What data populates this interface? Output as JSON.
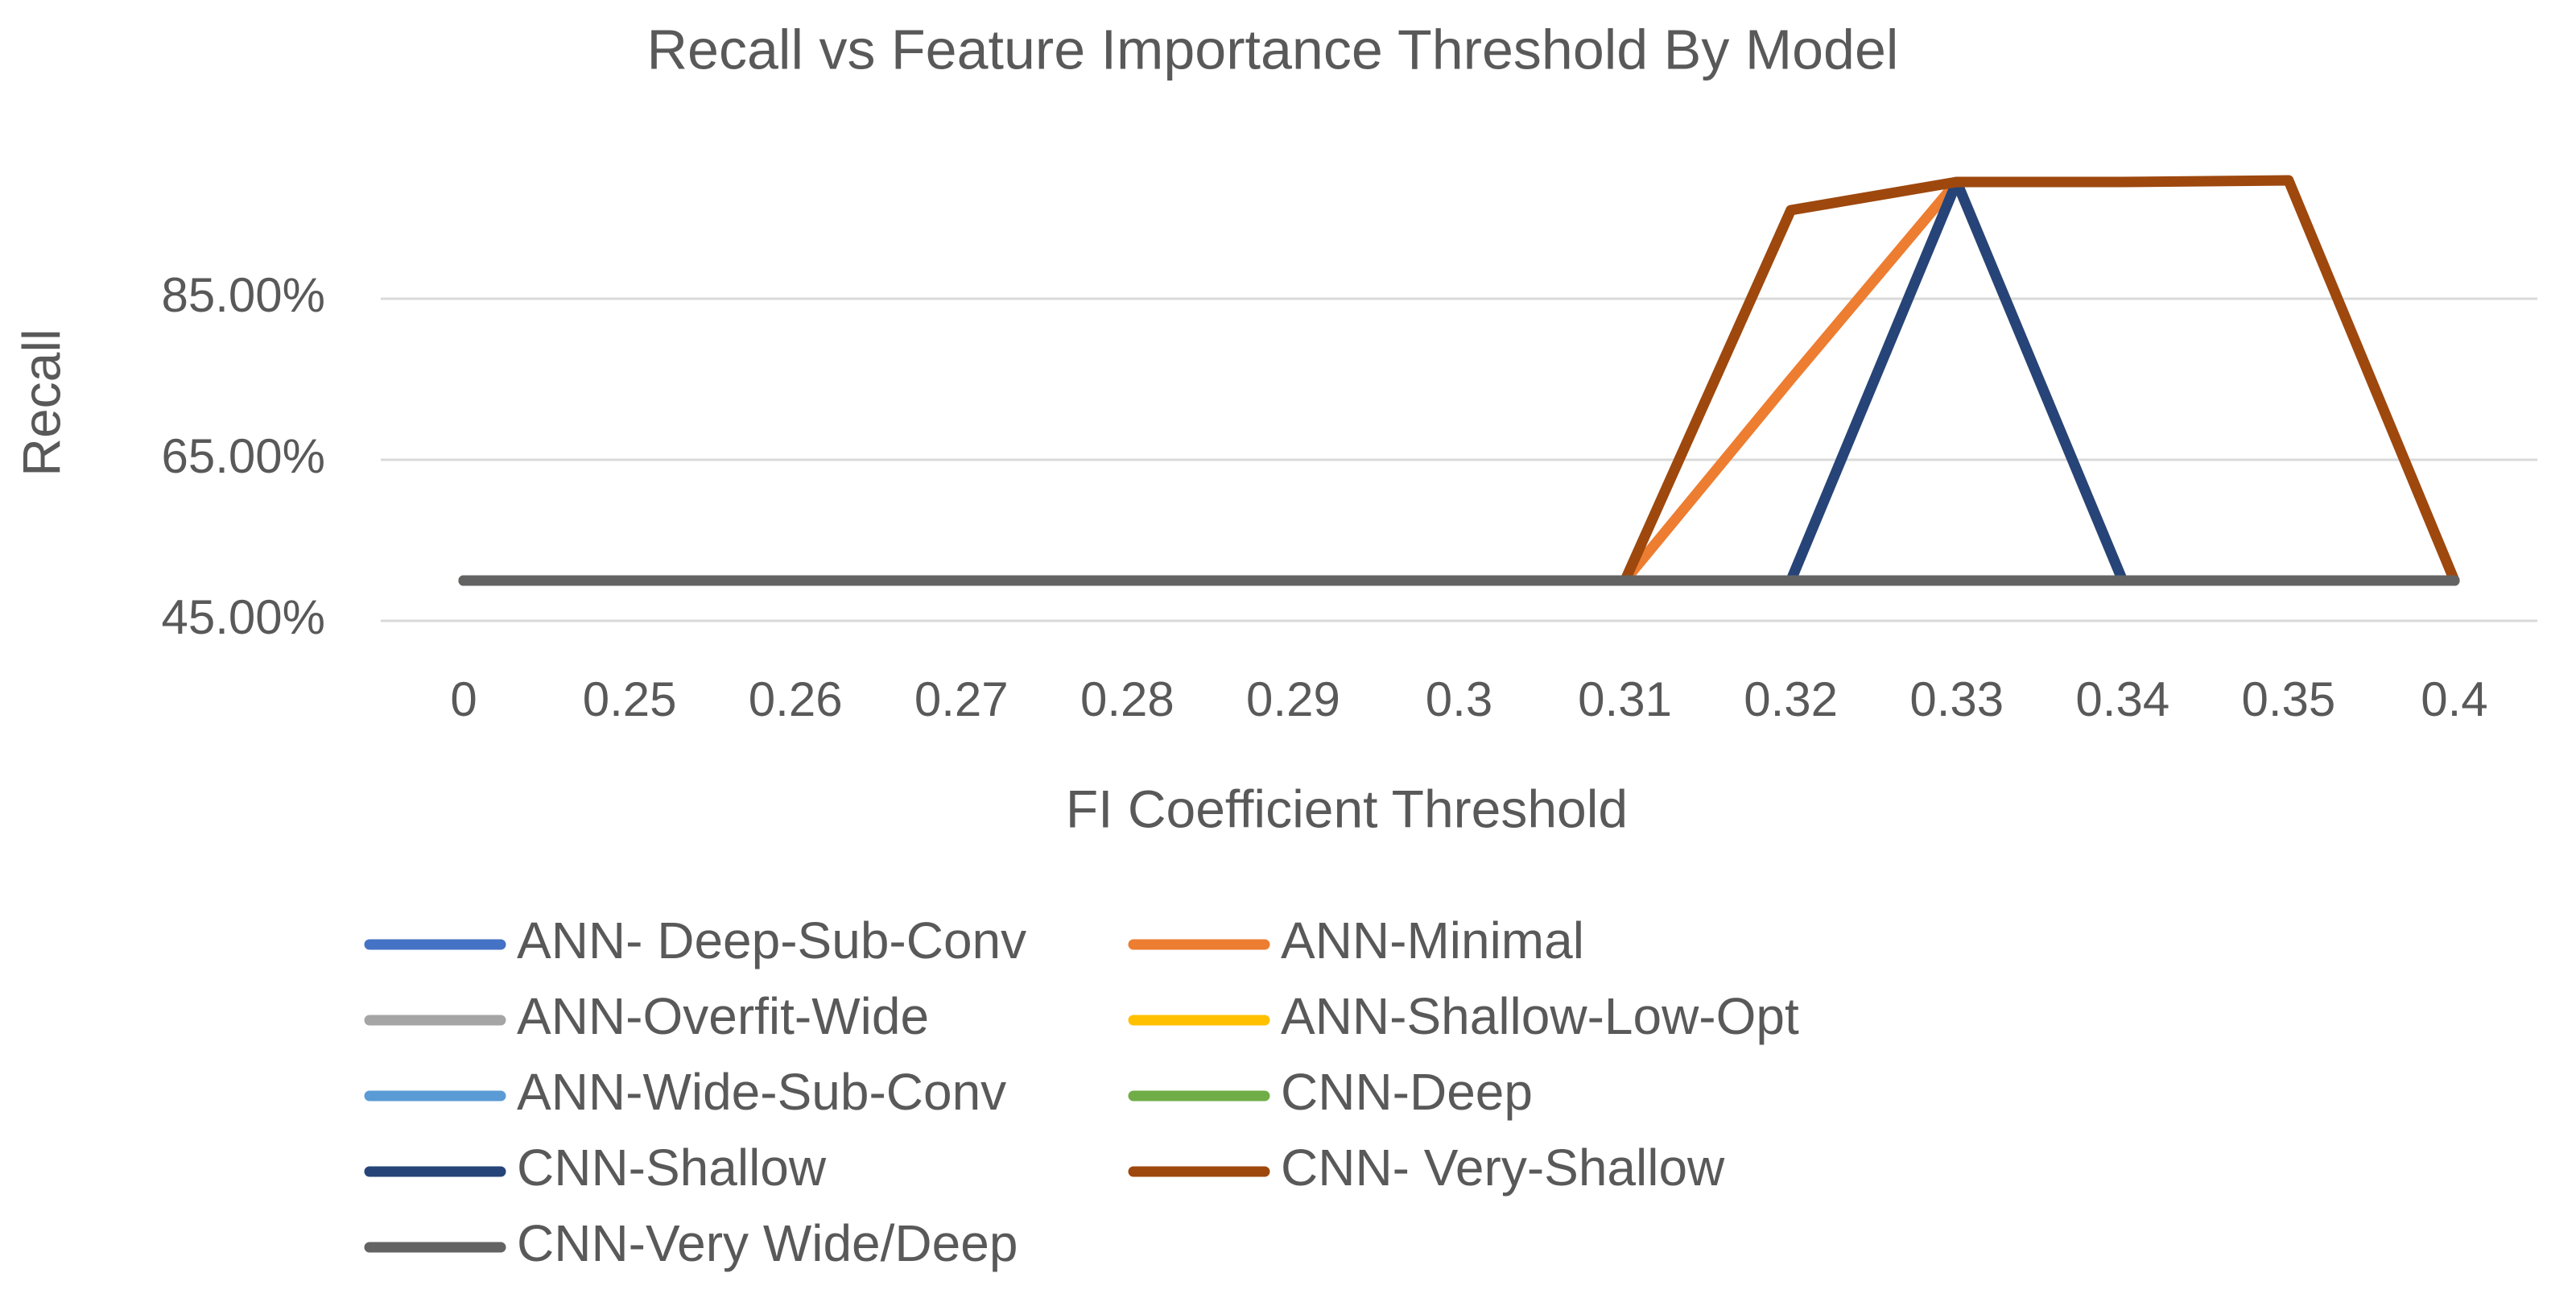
{
  "chart_data": {
    "type": "line",
    "title": "Recall vs Feature Importance Threshold By Model",
    "x_label": "FI Coefficient Threshold",
    "y_label": "Recall",
    "categories": [
      "0",
      "0.25",
      "0.26",
      "0.27",
      "0.28",
      "0.29",
      "0.3",
      "0.31",
      "0.32",
      "0.33",
      "0.34",
      "0.35",
      "0.4"
    ],
    "ylim": [
      45,
      100
    ],
    "yticks": [
      {
        "value": 45,
        "label": "45.00%"
      },
      {
        "value": 65,
        "label": "65.00%"
      },
      {
        "value": 85,
        "label": "85.00%"
      }
    ],
    "grid": true,
    "series": [
      {
        "name": "ANN- Deep-Sub-Conv",
        "color": "#4472c4",
        "values": [
          50,
          50,
          50,
          50,
          50,
          50,
          50,
          50,
          50,
          50,
          50,
          50,
          50
        ]
      },
      {
        "name": "ANN-Minimal",
        "color": "#ed7d31",
        "values": [
          50,
          50,
          50,
          50,
          50,
          50,
          50,
          50,
          75,
          99.5,
          50,
          50,
          50
        ]
      },
      {
        "name": "ANN-Overfit-Wide",
        "color": "#a5a5a5",
        "values": [
          50,
          50,
          50,
          50,
          50,
          50,
          50,
          50,
          50,
          99.5,
          50,
          50,
          50
        ]
      },
      {
        "name": "ANN-Shallow-Low-Opt",
        "color": "#ffc000",
        "values": [
          50,
          50,
          50,
          50,
          50,
          50,
          50,
          50,
          50,
          50,
          50,
          50,
          50
        ]
      },
      {
        "name": "ANN-Wide-Sub-Conv",
        "color": "#5b9bd5",
        "values": [
          50,
          50,
          50,
          50,
          50,
          50,
          50,
          50,
          50,
          50,
          50,
          50,
          50
        ]
      },
      {
        "name": "CNN-Deep",
        "color": "#70ad47",
        "values": [
          50,
          50,
          50,
          50,
          50,
          50,
          50,
          50,
          50,
          50,
          50,
          50,
          50
        ]
      },
      {
        "name": "CNN-Shallow",
        "color": "#264478",
        "values": [
          50,
          50,
          50,
          50,
          50,
          50,
          50,
          50,
          50,
          99.5,
          50,
          50,
          50
        ]
      },
      {
        "name": "CNN- Very-Shallow",
        "color": "#9e480e",
        "values": [
          50,
          50,
          50,
          50,
          50,
          50,
          50,
          50,
          96,
          99.5,
          99.5,
          99.7,
          50
        ]
      },
      {
        "name": "CNN-Very Wide/Deep",
        "color": "#636363",
        "values": [
          50,
          50,
          50,
          50,
          50,
          50,
          50,
          50,
          50,
          50,
          50,
          50,
          50
        ]
      }
    ]
  }
}
